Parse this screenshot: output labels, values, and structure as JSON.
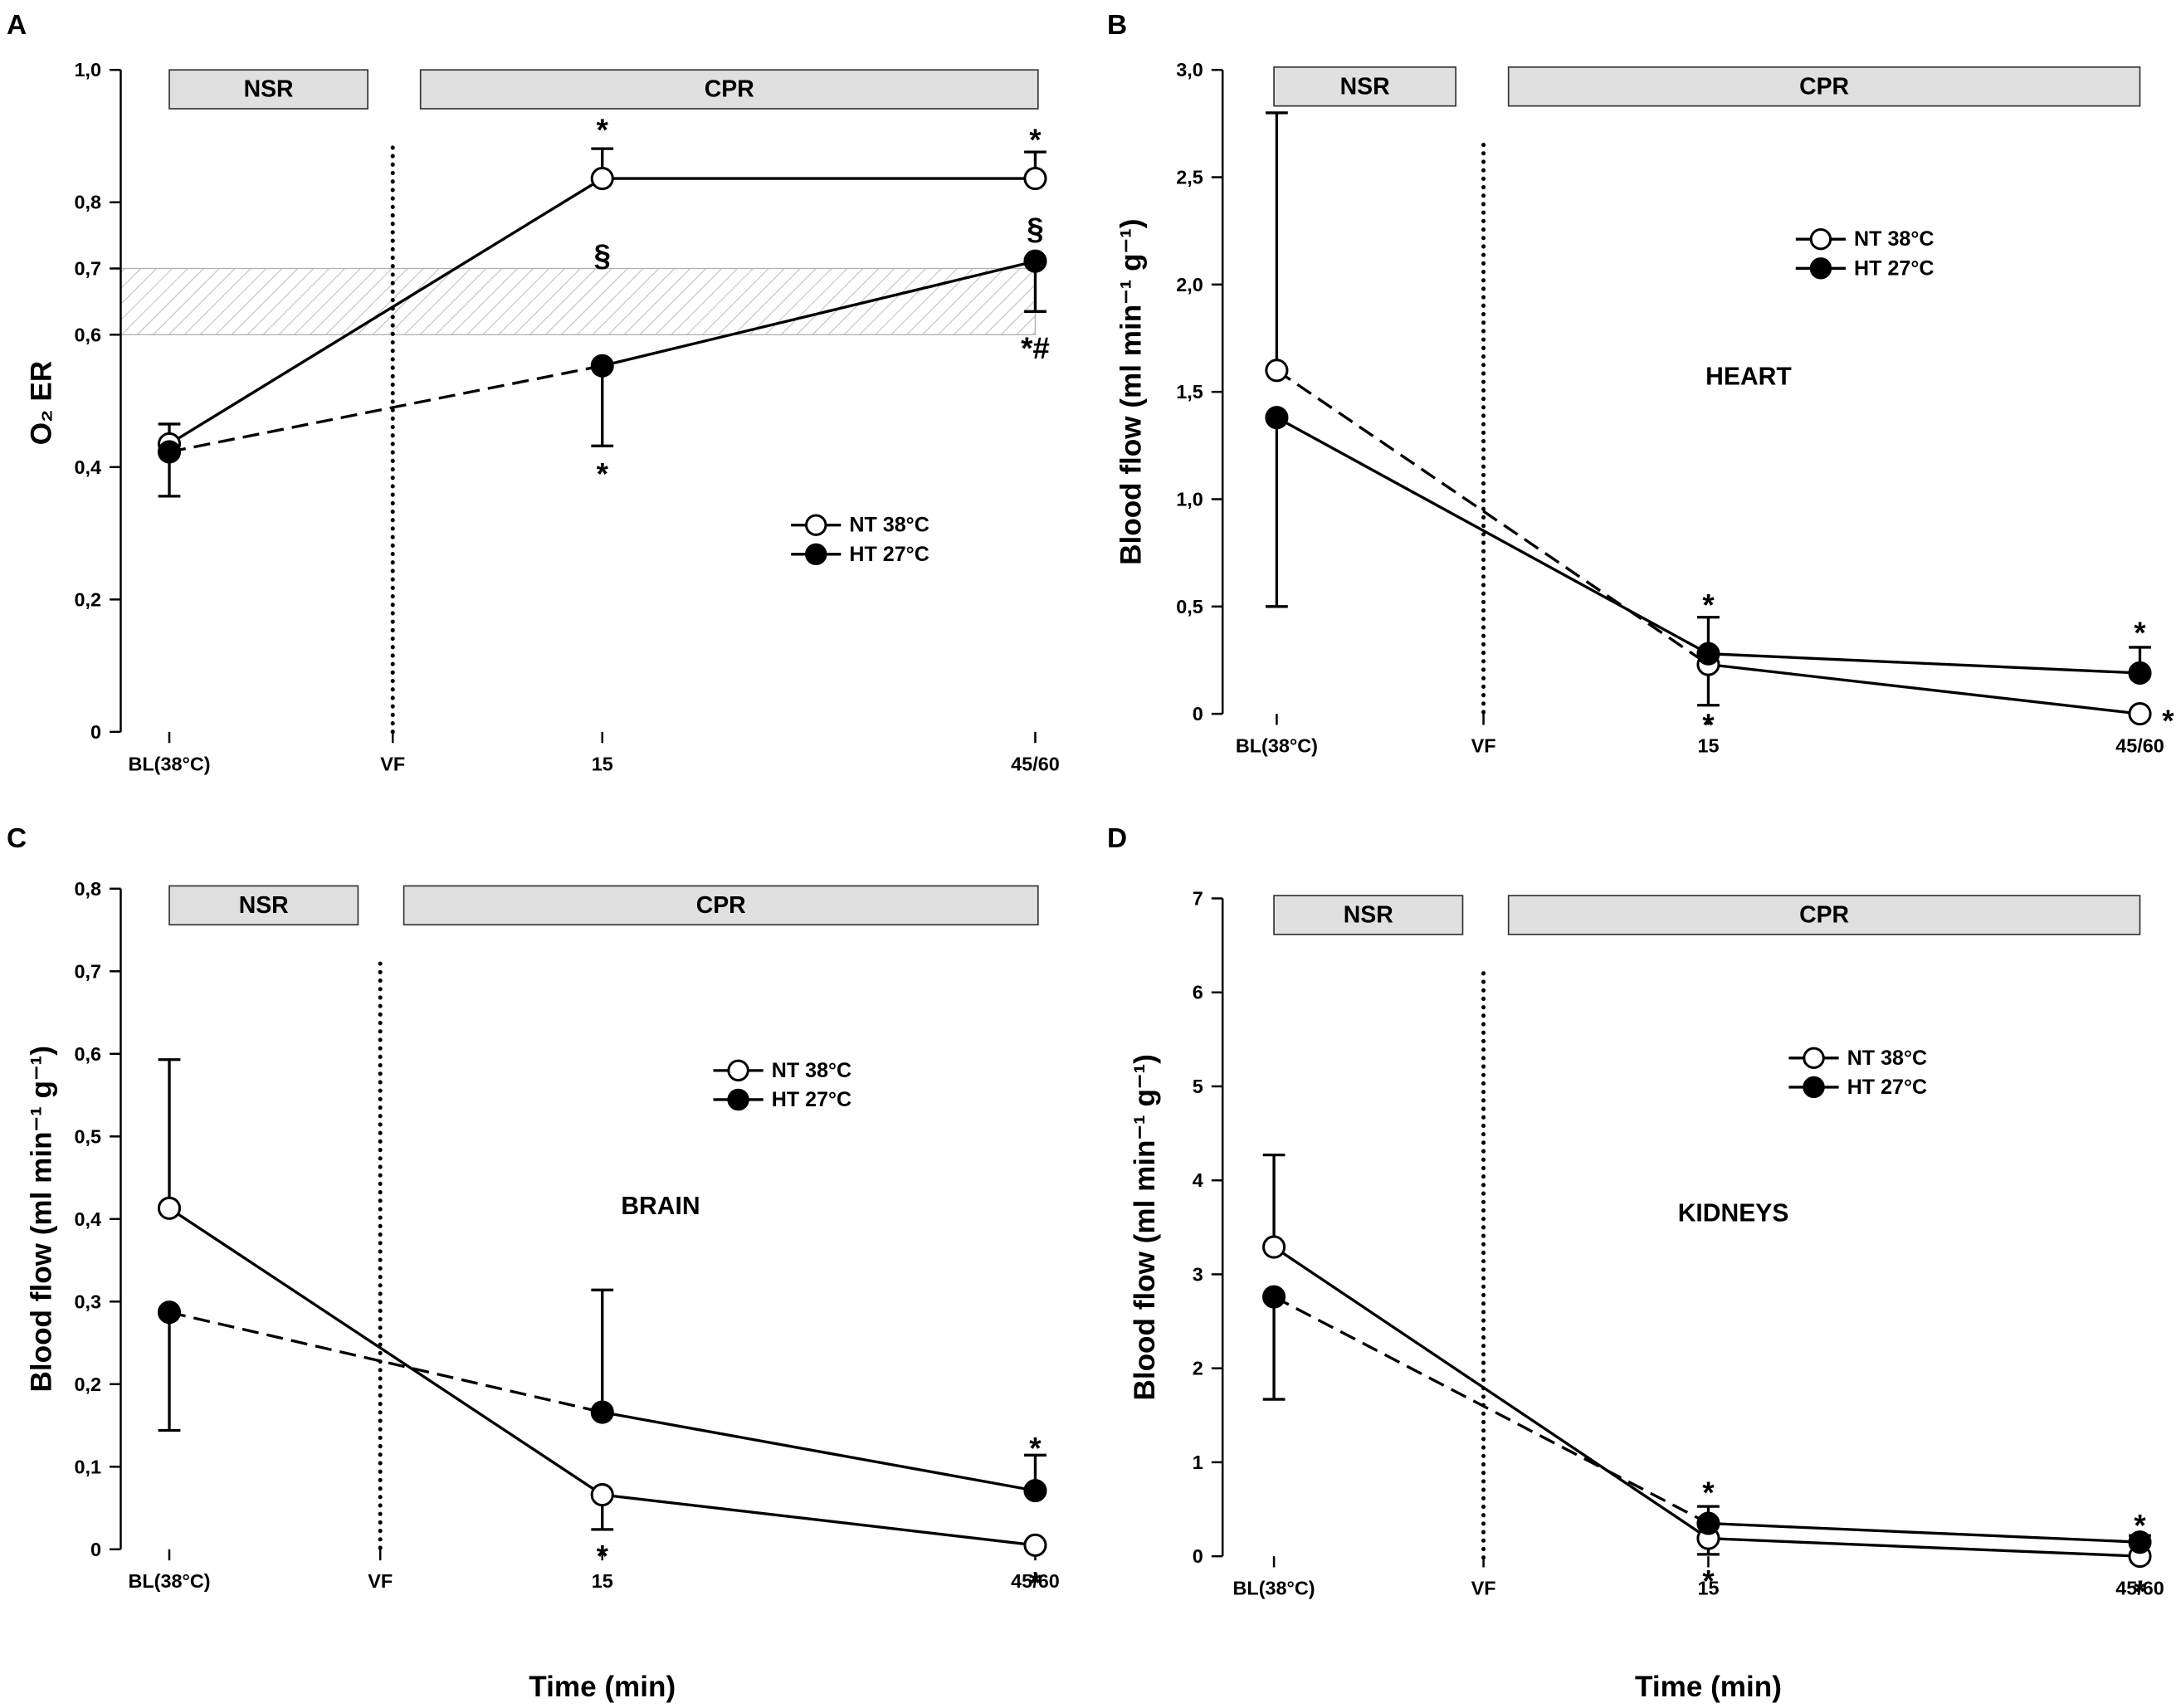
{
  "chart_data": [
    {
      "type": "line",
      "panel": "A",
      "ylabel": "O₂ ER",
      "categories": [
        "BL(38°C)",
        "15",
        "45/60"
      ],
      "event": "VF",
      "phases": [
        "NSR",
        "CPR"
      ],
      "ylim": [
        0,
        1.0
      ],
      "yticks": [
        0,
        {
          "value": 0.2,
          "label": "0,2"
        },
        {
          "value": 0.4,
          "label": "0,4"
        },
        {
          "value": 0.6,
          "label": "0,6"
        },
        {
          "value": 0.7,
          "label": "0,7"
        },
        {
          "value": 0.8,
          "label": "0,8"
        },
        {
          "value": 1.0,
          "label": "1,0"
        }
      ],
      "band": [
        0.6,
        0.7
      ],
      "series": [
        {
          "name": "NT 38°C",
          "color": "#000000",
          "fill": "#ffffff",
          "values": [
            0.435,
            0.836,
            0.836
          ],
          "errors_up": [
            0.03,
            0.045,
            0.04
          ],
          "errors_down": [
            null,
            null,
            null
          ],
          "dashed_segments": []
        },
        {
          "name": "HT 27°C",
          "color": "#000000",
          "fill": "#000000",
          "values": [
            0.423,
            0.553,
            0.711
          ],
          "errors_up": [
            null,
            null,
            null
          ],
          "errors_down": [
            0.067,
            0.121,
            0.076
          ],
          "dashed_segments": [
            0
          ]
        }
      ],
      "annotations": [
        {
          "text": "*",
          "point": 1,
          "y": 0.92
        },
        {
          "text": "*",
          "point": 2,
          "y": 0.905
        },
        {
          "text": "§",
          "point": 1,
          "y": 0.73
        },
        {
          "text": "§",
          "point": 2,
          "y": 0.77
        },
        {
          "text": "*",
          "point": 1,
          "y": 0.4
        },
        {
          "text": "*#",
          "point": 2,
          "y": 0.59
        }
      ]
    },
    {
      "type": "line",
      "panel": "B",
      "ylabel": "Blood flow (ml min⁻¹ g⁻¹)",
      "region": "HEART",
      "categories": [
        "BL(38°C)",
        "15",
        "45/60"
      ],
      "event": "VF",
      "phases": [
        "NSR",
        "CPR"
      ],
      "ylim": [
        0,
        3.0
      ],
      "yticks": [
        0,
        {
          "value": 0.5,
          "label": "0,5"
        },
        {
          "value": 1.0,
          "label": "1,0"
        },
        {
          "value": 1.5,
          "label": "1,5"
        },
        {
          "value": 2.0,
          "label": "2,0"
        },
        {
          "value": 2.5,
          "label": "2,5"
        },
        {
          "value": 3.0,
          "label": "3,0"
        }
      ],
      "series": [
        {
          "name": "NT 38°C",
          "color": "#000000",
          "fill": "#ffffff",
          "values": [
            1.6,
            0.23,
            0.0
          ],
          "errors_up": [
            1.2,
            null,
            null
          ],
          "errors_down": [
            null,
            0.19,
            null
          ],
          "dashed_segments": [
            0
          ]
        },
        {
          "name": "HT 27°C",
          "color": "#000000",
          "fill": "#000000",
          "values": [
            1.38,
            0.28,
            0.19
          ],
          "errors_up": [
            null,
            0.17,
            0.12
          ],
          "errors_down": [
            0.88,
            null,
            null
          ],
          "dashed_segments": []
        }
      ],
      "annotations": [
        {
          "text": "*",
          "point": 1,
          "y": 0.54
        },
        {
          "text": "*",
          "point": 1,
          "y": -0.02
        },
        {
          "text": "*",
          "point": 2,
          "y": 0.41
        },
        {
          "text": "*",
          "point": 2,
          "y": 0,
          "side": "right"
        }
      ]
    },
    {
      "type": "line",
      "panel": "C",
      "ylabel": "Blood flow (ml min⁻¹ g⁻¹)",
      "region": "BRAIN",
      "xlabel": "Time (min)",
      "categories": [
        "BL(38°C)",
        "15",
        "45/60"
      ],
      "event": "VF",
      "phases": [
        "NSR",
        "CPR"
      ],
      "ylim": [
        0,
        0.8
      ],
      "yticks": [
        0,
        {
          "value": 0.1,
          "label": "0,1"
        },
        {
          "value": 0.2,
          "label": "0,2"
        },
        {
          "value": 0.3,
          "label": "0,3"
        },
        {
          "value": 0.4,
          "label": "0,4"
        },
        {
          "value": 0.5,
          "label": "0,5"
        },
        {
          "value": 0.6,
          "label": "0,6"
        },
        {
          "value": 0.7,
          "label": "0,7"
        },
        {
          "value": 0.8,
          "label": "0,8"
        }
      ],
      "series": [
        {
          "name": "NT 38°C",
          "color": "#000000",
          "fill": "#ffffff",
          "values": [
            0.413,
            0.066,
            0.005
          ],
          "errors_up": [
            0.18,
            null,
            null
          ],
          "errors_down": [
            null,
            0.042,
            null
          ],
          "dashed_segments": []
        },
        {
          "name": "HT 27°C",
          "color": "#000000",
          "fill": "#000000",
          "values": [
            0.287,
            0.166,
            0.071
          ],
          "errors_up": [
            null,
            0.148,
            0.043
          ],
          "errors_down": [
            0.143,
            null,
            null
          ],
          "dashed_segments": [
            0
          ]
        }
      ],
      "annotations": [
        {
          "text": "*",
          "point": 1,
          "y": 0.0
        },
        {
          "text": "*",
          "point": 2,
          "y": 0.131
        },
        {
          "text": "*",
          "point": 2,
          "y": -0.032
        }
      ]
    },
    {
      "type": "line",
      "panel": "D",
      "ylabel": "Blood flow (ml min⁻¹ g⁻¹)",
      "region": "KIDNEYS",
      "xlabel": "Time (min)",
      "categories": [
        "BL(38°C)",
        "15",
        "45/60"
      ],
      "event": "VF",
      "phases": [
        "NSR",
        "CPR"
      ],
      "ylim": [
        0,
        7
      ],
      "yticks": [
        0,
        1,
        2,
        3,
        4,
        5,
        6,
        7
      ],
      "series": [
        {
          "name": "NT 38°C",
          "color": "#000000",
          "fill": "#ffffff",
          "values": [
            3.29,
            0.19,
            0.0
          ],
          "errors_up": [
            0.98,
            null,
            null
          ],
          "errors_down": [
            null,
            0.17,
            null
          ],
          "dashed_segments": []
        },
        {
          "name": "HT 27°C",
          "color": "#000000",
          "fill": "#000000",
          "values": [
            2.76,
            0.35,
            0.15
          ],
          "errors_up": [
            null,
            0.18,
            0.07
          ],
          "errors_down": [
            1.09,
            null,
            null
          ],
          "dashed_segments": [
            0
          ]
        }
      ],
      "annotations": [
        {
          "text": "*",
          "point": 1,
          "y": 0.75
        },
        {
          "text": "*",
          "point": 1,
          "y": -0.19
        },
        {
          "text": "*",
          "point": 2,
          "y": 0.4
        },
        {
          "text": "*",
          "point": 2,
          "y": -0.3
        }
      ]
    }
  ]
}
